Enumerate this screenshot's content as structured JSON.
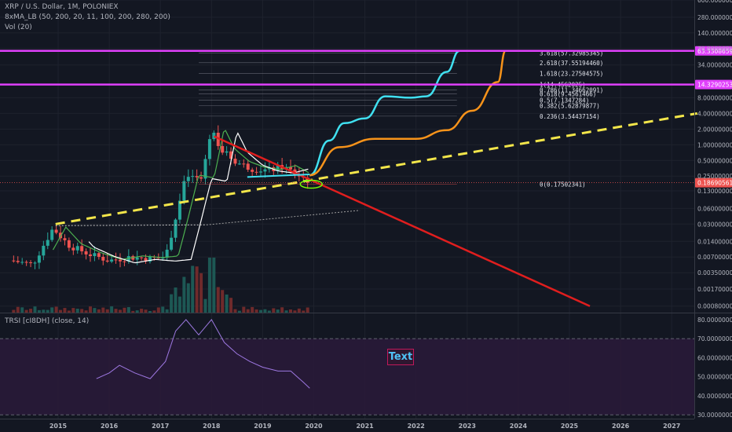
{
  "legend": {
    "symbol": "XRP / U.S. Dollar, 1M, POLONIEX",
    "ma": "8xMA_LB (50, 200, 20, 11, 100, 200, 280, 200)",
    "vol": "Vol (20)",
    "rsi": "TRSI [cI8DH] (close, 14)"
  },
  "annotation_text": "Text",
  "colors": {
    "background": "#131722",
    "up": "#26a69a",
    "down": "#ef5350",
    "magenta": "#e040fb",
    "cyan": "#40e0f0",
    "orange": "#f7931a",
    "yellow_dash": "#f3e64a",
    "red_line": "#e01e1e"
  },
  "chart_data": [
    {
      "type": "candlestick",
      "log_scale": true,
      "ylim": [
        0.0006,
        600
      ],
      "x_labels": [
        "2015",
        "2016",
        "2017",
        "2018",
        "2019",
        "2020",
        "2021",
        "2022",
        "2023",
        "2024",
        "2025",
        "2026",
        "2027"
      ],
      "y_ticks": [
        "0.00080000",
        "0.00170000",
        "0.00350000",
        "0.00700000",
        "0.01400000",
        "0.03000000",
        "0.06000000",
        "0.13000000",
        "0.25000000",
        "0.50000000",
        "1.00000000",
        "2.00000000",
        "4.00000000",
        "8.00000000",
        "34.00000000",
        "70.00000000",
        "140.00000000",
        "280.00000000",
        "600.00000000"
      ],
      "price_badges": [
        {
          "label": "63.33086593",
          "value": 63.33,
          "color": "#e040fb"
        },
        {
          "label": "14.32902538",
          "value": 14.33,
          "color": "#e040fb"
        },
        {
          "label": "0.18690561",
          "value": 0.1869,
          "color": "#ef5350"
        }
      ],
      "fib_levels": [
        {
          "label": "3.618(57.32985345)",
          "value": 57.33
        },
        {
          "label": "2.618(37.55194460)",
          "value": 37.55
        },
        {
          "label": "1.618(23.27504575)",
          "value": 23.28
        },
        {
          "label": "1(14.4562025)",
          "value": 14.46
        },
        {
          "label": "0.786(11.34662091)",
          "value": 11.35
        },
        {
          "label": "0.618(9.4561466)",
          "value": 9.46
        },
        {
          "label": "0.5(7.1347284)",
          "value": 7.13
        },
        {
          "label": "0.382(5.62879877)",
          "value": 5.63
        },
        {
          "label": "0.236(3.54437154)",
          "value": 3.54
        },
        {
          "label": "0(0.17502341)",
          "value": 0.175
        }
      ],
      "series": [
        {
          "name": "",
          "kind": "projection-cyan",
          "points": [
            [
              2019.92,
              0.26
            ],
            [
              2020.3,
              1.2
            ],
            [
              2020.6,
              2.6
            ],
            [
              2021.0,
              3.2
            ],
            [
              2021.4,
              8.5
            ],
            [
              2021.9,
              8.0
            ],
            [
              2022.2,
              8.5
            ],
            [
              2022.6,
              25
            ],
            [
              2022.85,
              63
            ]
          ]
        },
        {
          "name": "",
          "kind": "projection-orange",
          "points": [
            [
              2019.92,
              0.26
            ],
            [
              2020.5,
              0.9
            ],
            [
              2021.2,
              1.3
            ],
            [
              2022.0,
              1.3
            ],
            [
              2022.6,
              1.9
            ],
            [
              2023.1,
              4.5
            ],
            [
              2023.6,
              16
            ],
            [
              2023.75,
              63
            ]
          ]
        },
        {
          "name": "",
          "kind": "trend-yellow",
          "points": [
            [
              2014.95,
              0.03
            ],
            [
              2027.5,
              4.0
            ]
          ]
        },
        {
          "name": "",
          "kind": "trend-red",
          "points": [
            [
              2018.05,
              1.45
            ],
            [
              2025.4,
              0.0008
            ]
          ]
        }
      ]
    },
    {
      "type": "line",
      "name": "TRSI",
      "ylim": [
        28,
        82
      ],
      "y_ticks": [
        "30.00000000",
        "40.00000000",
        "50.00000000",
        "60.00000000",
        "70.00000000",
        "80.00000000"
      ],
      "band": [
        30,
        70
      ],
      "points": [
        [
          2015.75,
          49
        ],
        [
          2016.0,
          52
        ],
        [
          2016.2,
          56
        ],
        [
          2016.5,
          52
        ],
        [
          2016.8,
          49
        ],
        [
          2017.1,
          58
        ],
        [
          2017.3,
          74
        ],
        [
          2017.5,
          80
        ],
        [
          2017.75,
          72
        ],
        [
          2018.0,
          80
        ],
        [
          2018.25,
          68
        ],
        [
          2018.5,
          62
        ],
        [
          2018.75,
          58
        ],
        [
          2019.0,
          55
        ],
        [
          2019.3,
          53
        ],
        [
          2019.55,
          53
        ],
        [
          2019.8,
          47
        ],
        [
          2019.92,
          44
        ]
      ]
    }
  ]
}
